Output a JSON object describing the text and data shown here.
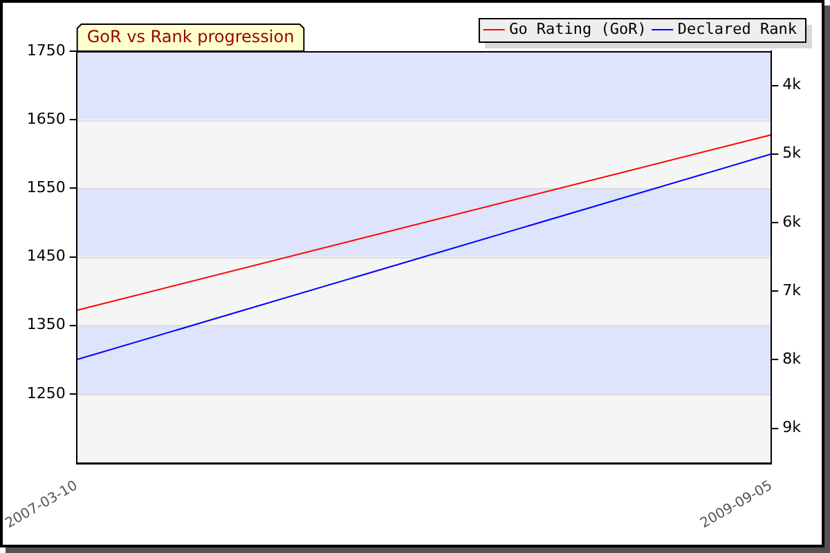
{
  "chart_data": {
    "type": "line",
    "title": "GoR vs Rank progression",
    "x": [
      "2007-03-10",
      "2009-09-05"
    ],
    "series": [
      {
        "name": "Go Rating (GoR)",
        "color": "#ff0000",
        "values": [
          1372,
          1628
        ]
      },
      {
        "name": "Declared Rank",
        "color": "#0000ff",
        "values": [
          8000,
          5000
        ],
        "axis": "y2"
      }
    ],
    "xlim": [
      "2007-03-10",
      "2009-09-05"
    ],
    "xticks": [
      {
        "value": "2007-03-10",
        "label": "2007-03-10"
      },
      {
        "value": "2009-09-05",
        "label": "2009-09-05"
      }
    ],
    "ylim": [
      1150,
      1750
    ],
    "yticks": [
      1250,
      1350,
      1450,
      1550,
      1650,
      1750
    ],
    "y2lim": [
      9500,
      3500
    ],
    "y2ticks": [
      {
        "value": 4000,
        "label": "4k"
      },
      {
        "value": 5000,
        "label": "5k"
      },
      {
        "value": 6000,
        "label": "6k"
      },
      {
        "value": 7000,
        "label": "7k"
      },
      {
        "value": 8000,
        "label": "8k"
      },
      {
        "value": 9000,
        "label": "9k"
      }
    ],
    "bands": [
      {
        "axis": "y",
        "from": 1650,
        "to": 1750,
        "color": "#dde4fb"
      },
      {
        "axis": "y",
        "from": 1550,
        "to": 1650,
        "color": "#f5f5f5"
      },
      {
        "axis": "y",
        "from": 1450,
        "to": 1550,
        "color": "#dde4fb"
      },
      {
        "axis": "y",
        "from": 1350,
        "to": 1450,
        "color": "#f5f5f5"
      },
      {
        "axis": "y",
        "from": 1250,
        "to": 1350,
        "color": "#dde4fb"
      },
      {
        "axis": "y",
        "from": 1150,
        "to": 1250,
        "color": "#f5f5f5"
      }
    ],
    "grid": "y",
    "legend": "top right",
    "marker": "none",
    "line_style": "solid"
  }
}
